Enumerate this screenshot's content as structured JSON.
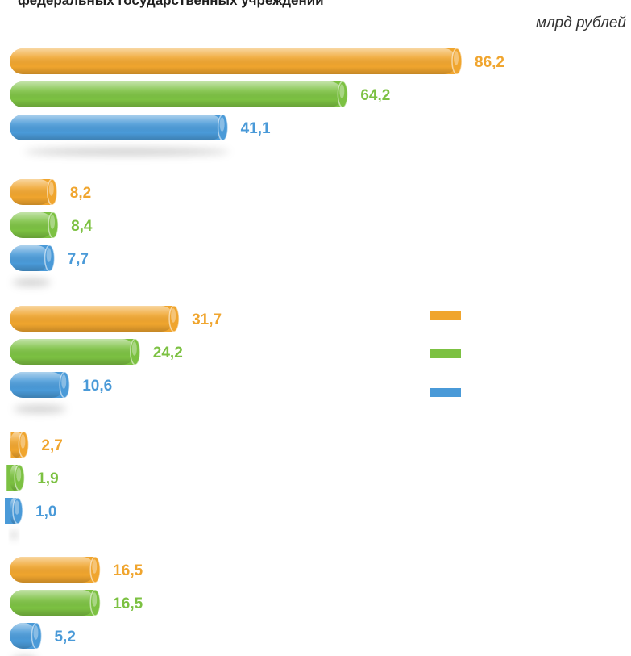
{
  "title": "федеральных государственных учреждений",
  "unit": "млрд рублей",
  "colors": {
    "orange": "#f0a52e",
    "green": "#7cc142",
    "blue": "#4a9ad8"
  },
  "chart_data": {
    "type": "bar",
    "orientation": "horizontal",
    "categories": [
      "",
      "",
      "",
      "",
      ""
    ],
    "series": [
      {
        "color": "#f0a52e",
        "values": [
          86.2,
          8.2,
          31.7,
          2.7,
          16.5
        ],
        "labels": [
          "86,2",
          "8,2",
          "31,7",
          "2,7",
          "16,5"
        ]
      },
      {
        "color": "#7cc142",
        "values": [
          64.2,
          8.4,
          24.2,
          1.9,
          16.5
        ],
        "labels": [
          "64,2",
          "8,4",
          "24,2",
          "1,9",
          "16,5"
        ]
      },
      {
        "color": "#4a9ad8",
        "values": [
          41.1,
          7.7,
          10.6,
          1.0,
          5.2
        ],
        "labels": [
          "41,1",
          "7,7",
          "10,6",
          "1,0",
          "5,2"
        ]
      }
    ],
    "xlim": [
      0,
      86.2
    ],
    "legend": {
      "position": "right",
      "entries": [
        "",
        "",
        ""
      ]
    },
    "grid": false
  }
}
